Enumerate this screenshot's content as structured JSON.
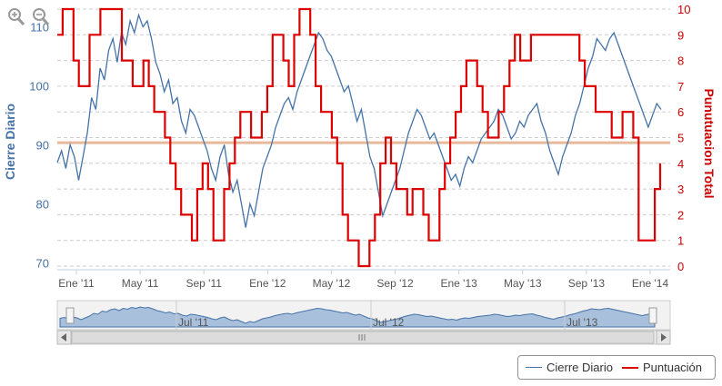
{
  "chart_data": {
    "type": "line",
    "title": "",
    "y_left": {
      "label": "Cierre Diario",
      "ticks": [
        70,
        80,
        90,
        100,
        110
      ],
      "range": [
        69,
        113
      ]
    },
    "y_right": {
      "label": "Punutuacion Total",
      "ticks": [
        0,
        1,
        2,
        3,
        4,
        5,
        6,
        7,
        8,
        9,
        10
      ],
      "range": [
        0,
        10
      ]
    },
    "x_ticks": [
      "Ene '11",
      "May '11",
      "Sep '11",
      "Ene '12",
      "May '12",
      "Sep '12",
      "Ene '13",
      "May '13",
      "Sep '13",
      "Ene '14"
    ],
    "navigator_labels": [
      "Jul '11",
      "Jul '12",
      "Jul '13"
    ],
    "reference_line": {
      "axis": "right",
      "value": 4.8,
      "color": "#e8b89a"
    },
    "grid": true,
    "legend_position": "bottom-right",
    "series": [
      {
        "name": "Cierre Diario",
        "axis": "left",
        "color": "#4572a7",
        "values": [
          87,
          89,
          86,
          90,
          88,
          84,
          88,
          92,
          98,
          96,
          103,
          101,
          106,
          108,
          104,
          109,
          107,
          111,
          109,
          112,
          110,
          111,
          108,
          104,
          102,
          99,
          101,
          97,
          98,
          94,
          92,
          96,
          95,
          93,
          91,
          89,
          86,
          84,
          88,
          90,
          85,
          82,
          84,
          80,
          76,
          80,
          78,
          82,
          86,
          88,
          90,
          93,
          95,
          97,
          98,
          96,
          99,
          101,
          103,
          105,
          107,
          109,
          108,
          106,
          105,
          103,
          101,
          99,
          100,
          97,
          94,
          96,
          92,
          88,
          86,
          82,
          78,
          80,
          82,
          84,
          86,
          89,
          92,
          94,
          96,
          95,
          93,
          91,
          92,
          90,
          88,
          86,
          84,
          85,
          83,
          86,
          88,
          87,
          89,
          91,
          92,
          93,
          94,
          96,
          95,
          93,
          91,
          92,
          94,
          93,
          95,
          96,
          97,
          94,
          92,
          89,
          87,
          85,
          88,
          90,
          92,
          95,
          97,
          100,
          103,
          105,
          108,
          107,
          106,
          108,
          109,
          107,
          105,
          103,
          101,
          99,
          97,
          95,
          93,
          95,
          97,
          96
        ]
      },
      {
        "name": "Puntuación",
        "axis": "right",
        "color": "#dd0000",
        "values": [
          9,
          10,
          10,
          8,
          7,
          7,
          9,
          9,
          10,
          10,
          10,
          10,
          8,
          8,
          7,
          7,
          8,
          7,
          6,
          6,
          5,
          4,
          3,
          2,
          2,
          1,
          3,
          4,
          3,
          1,
          1,
          3,
          4,
          5,
          6,
          6,
          5,
          5,
          6,
          7,
          9,
          9,
          8,
          7,
          9,
          10,
          10,
          9,
          7,
          6,
          6,
          5,
          4,
          2,
          1,
          1,
          0,
          0,
          1,
          2,
          4,
          5,
          4,
          3,
          3,
          2,
          3,
          3,
          2,
          1,
          1,
          3,
          4,
          5,
          6,
          7,
          8,
          8,
          7,
          6,
          5,
          5,
          6,
          7,
          8,
          9,
          8,
          8,
          9,
          9,
          9,
          9,
          9,
          9,
          9,
          9,
          9,
          8,
          7,
          7,
          6,
          6,
          6,
          5,
          5,
          6,
          6,
          5,
          1,
          1,
          1,
          3,
          4
        ]
      }
    ]
  }
}
